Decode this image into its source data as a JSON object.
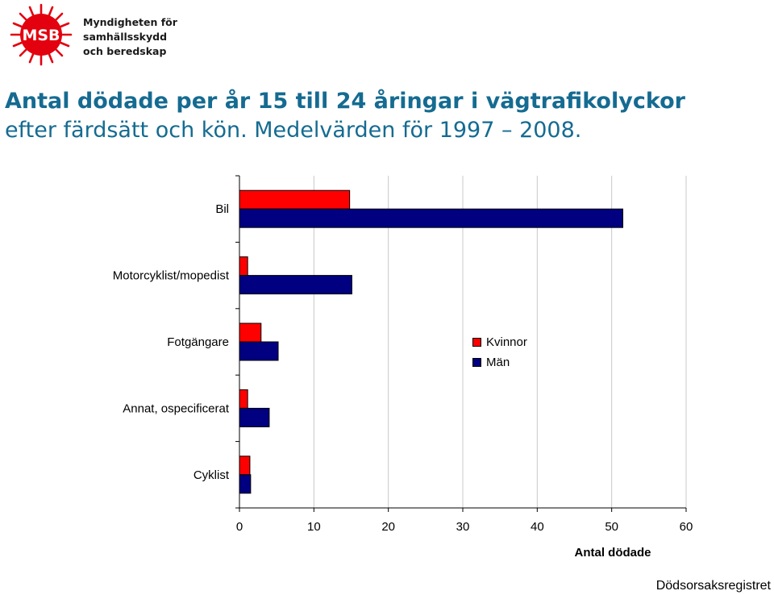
{
  "logo": {
    "mark": "MSB",
    "lines": [
      "Myndigheten för",
      "samhällsskydd",
      "och beredskap"
    ]
  },
  "title": {
    "line1": "Antal dödade per år 15 till 24 åringar i vägtrafikolyckor",
    "line2": "efter färdsätt och kön. Medelvärden för 1997 – 2008."
  },
  "chart_data": {
    "type": "bar",
    "orientation": "horizontal",
    "categories": [
      "Bil",
      "Motorcyklist/mopedist",
      "Fotgängare",
      "Annat, ospecificerat",
      "Cyklist"
    ],
    "series": [
      {
        "name": "Kvinnor",
        "color": "#ff0000",
        "values": [
          14.8,
          1.1,
          2.9,
          1.1,
          1.4
        ]
      },
      {
        "name": "Män",
        "color": "#000080",
        "values": [
          51.5,
          15.1,
          5.2,
          4.0,
          1.5
        ]
      }
    ],
    "xlabel": "Antal dödade",
    "xlim": [
      0,
      60
    ],
    "xticks": [
      0,
      10,
      20,
      30,
      40,
      50,
      60
    ],
    "grid": "vertical",
    "legend": "right-center"
  },
  "source": "Dödsorsaksregistret"
}
